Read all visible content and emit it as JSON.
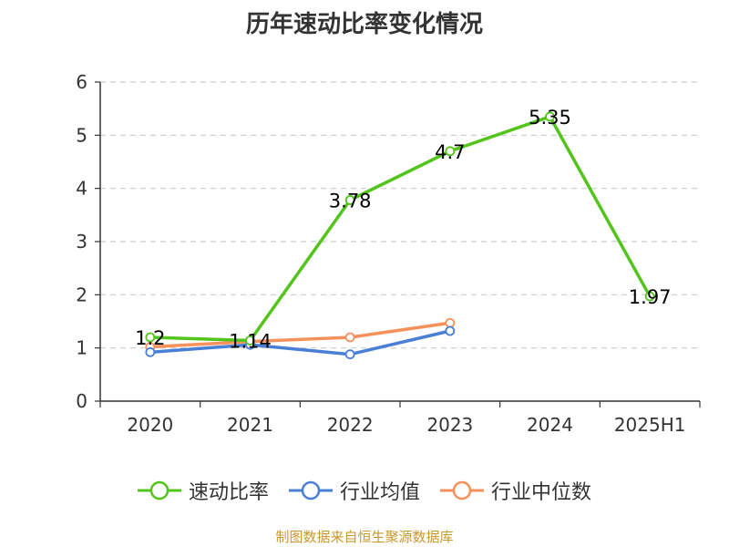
{
  "title": "历年速动比率变化情况",
  "source_text": "制图数据来自恒生聚源数据库",
  "colors": {
    "series_1": "#52c41a",
    "series_2": "#4a7fd6",
    "series_3": "#f7915c",
    "grid": "#cccccc",
    "axis": "#333333"
  },
  "chart_data": {
    "type": "line",
    "title": "历年速动比率变化情况",
    "categories": [
      "2020",
      "2021",
      "2022",
      "2023",
      "2024",
      "2025H1"
    ],
    "ylim": [
      0,
      6
    ],
    "yticks": [
      0,
      1,
      2,
      3,
      4,
      5,
      6
    ],
    "grid": true,
    "legend_position": "bottom",
    "series": [
      {
        "name": "速动比率",
        "values": [
          1.2,
          1.14,
          3.78,
          4.7,
          5.35,
          1.97
        ],
        "labels": [
          "1.2",
          "1.14",
          "3.78",
          "4.7",
          "5.35",
          "1.97"
        ]
      },
      {
        "name": "行业均值",
        "values": [
          0.92,
          1.06,
          0.88,
          1.32,
          null,
          null
        ]
      },
      {
        "name": "行业中位数",
        "values": [
          1.02,
          1.12,
          1.2,
          1.47,
          null,
          null
        ]
      }
    ]
  }
}
